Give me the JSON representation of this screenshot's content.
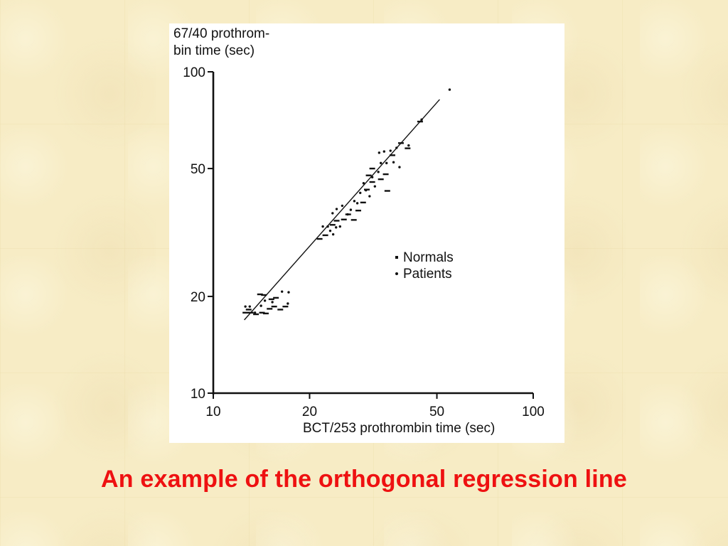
{
  "caption": "An example of the orthogonal regression line",
  "chart_data": {
    "type": "scatter",
    "ylabel_line1": "67/40 prothrom-",
    "ylabel_line2": "bin time (sec)",
    "xlabel": "BCT/253 prothrombin time (sec)",
    "xscale": "log",
    "yscale": "log",
    "xlim": [
      10,
      100
    ],
    "ylim": [
      10,
      100
    ],
    "xticks": [
      10,
      20,
      50,
      100
    ],
    "yticks": [
      10,
      20,
      50,
      100
    ],
    "xtick_labels": [
      "10",
      "20",
      "50",
      "100"
    ],
    "ytick_labels": [
      "10",
      "20",
      "50",
      "100"
    ],
    "grid": false,
    "legend_position": "center-right",
    "series": [
      {
        "name": "Normals",
        "marker": "dash",
        "points": [
          [
            12.6,
            17.8
          ],
          [
            13.1,
            17.8
          ],
          [
            13.6,
            17.6
          ],
          [
            14.2,
            17.8
          ],
          [
            14.6,
            17.7
          ],
          [
            15.0,
            18.3
          ],
          [
            15.5,
            18.6
          ],
          [
            14.4,
            20.2
          ],
          [
            15.2,
            19.6
          ],
          [
            15.7,
            19.8
          ],
          [
            16.2,
            18.2
          ],
          [
            16.8,
            18.6
          ],
          [
            12.9,
            18.2
          ],
          [
            14.0,
            20.3
          ],
          [
            21.5,
            30.2
          ],
          [
            22.4,
            31.0
          ],
          [
            23.6,
            33.4
          ],
          [
            24.3,
            34.4
          ],
          [
            25.6,
            34.7
          ],
          [
            26.4,
            36.0
          ],
          [
            27.5,
            34.6
          ],
          [
            28.4,
            37.0
          ],
          [
            29.4,
            39.2
          ],
          [
            30.2,
            43.0
          ],
          [
            31.4,
            45.4
          ],
          [
            30.6,
            47.6
          ],
          [
            31.4,
            50.0
          ],
          [
            33.4,
            46.3
          ],
          [
            34.6,
            48.0
          ],
          [
            35.0,
            42.6
          ],
          [
            36.3,
            55.0
          ],
          [
            38.6,
            60.0
          ],
          [
            40.5,
            57.8
          ],
          [
            44.3,
            70.0
          ]
        ]
      },
      {
        "name": "Patients",
        "marker": "dot",
        "points": [
          [
            12.6,
            18.6
          ],
          [
            13.0,
            18.6
          ],
          [
            13.5,
            17.8
          ],
          [
            14.1,
            18.7
          ],
          [
            14.5,
            19.4
          ],
          [
            15.3,
            19.2
          ],
          [
            16.4,
            20.7
          ],
          [
            17.2,
            20.6
          ],
          [
            17.1,
            19.0
          ],
          [
            22.0,
            33.0
          ],
          [
            22.8,
            33.0
          ],
          [
            23.2,
            32.0
          ],
          [
            23.7,
            31.2
          ],
          [
            24.2,
            32.8
          ],
          [
            24.9,
            33.0
          ],
          [
            23.6,
            36.3
          ],
          [
            24.3,
            37.4
          ],
          [
            25.3,
            38.3
          ],
          [
            26.3,
            36.0
          ],
          [
            26.9,
            37.2
          ],
          [
            27.6,
            39.6
          ],
          [
            28.2,
            39.0
          ],
          [
            28.8,
            42.0
          ],
          [
            29.5,
            45.0
          ],
          [
            30.0,
            42.8
          ],
          [
            30.8,
            41.0
          ],
          [
            31.4,
            47.0
          ],
          [
            32.0,
            44.0
          ],
          [
            32.8,
            48.8
          ],
          [
            33.4,
            52.0
          ],
          [
            33.0,
            56.0
          ],
          [
            34.2,
            56.5
          ],
          [
            34.8,
            52.0
          ],
          [
            35.8,
            56.8
          ],
          [
            36.6,
            52.3
          ],
          [
            37.4,
            58.0
          ],
          [
            38.2,
            50.5
          ],
          [
            40.8,
            59.0
          ],
          [
            44.8,
            71.0
          ],
          [
            54.8,
            88.0
          ]
        ]
      }
    ],
    "regression_line": {
      "x": [
        12.5,
        51.0
      ],
      "y": [
        16.9,
        82.0
      ]
    }
  }
}
